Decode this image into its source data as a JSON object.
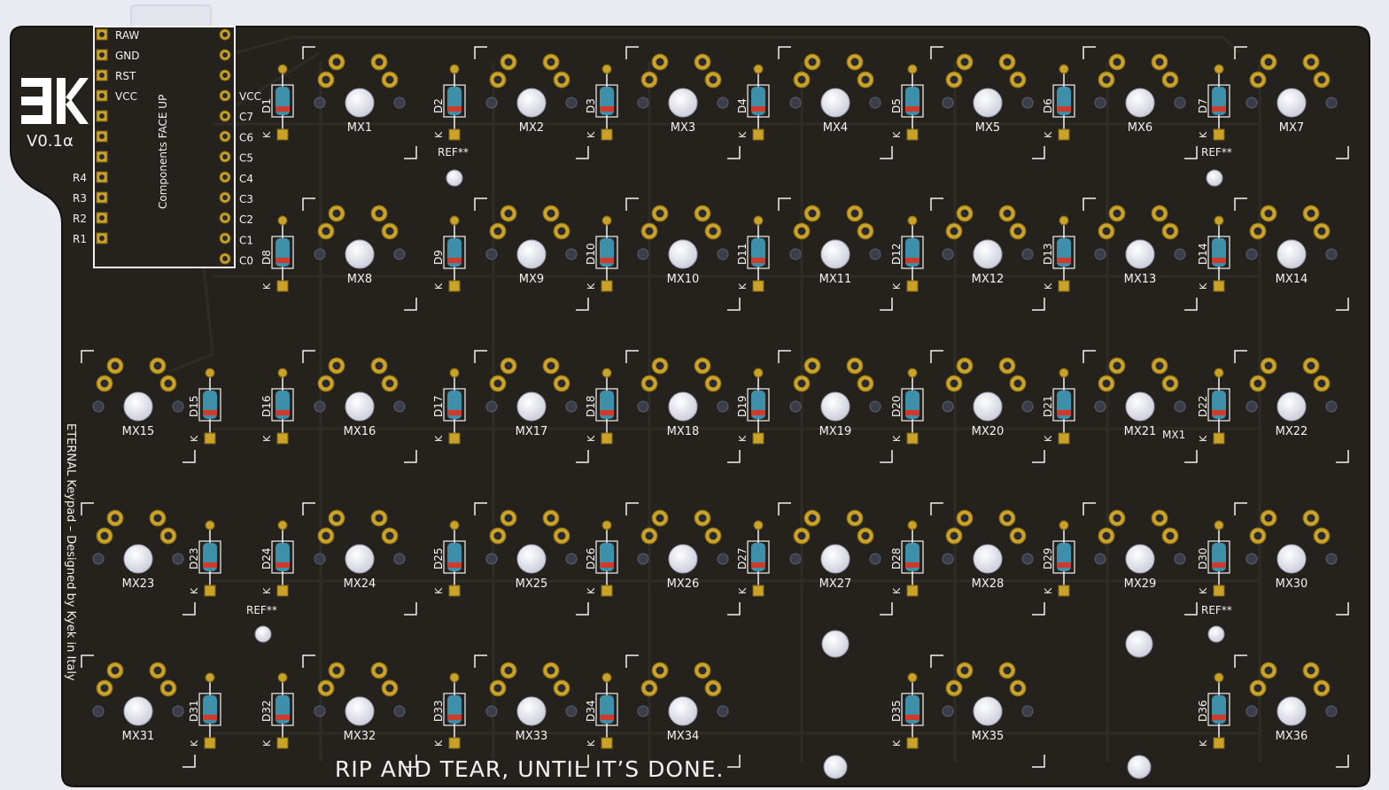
{
  "board": {
    "logo_text": "EK",
    "version": "V0.1α",
    "controller_label": "Components FACE UP",
    "side_text": "ETERNAL Keypad – Designed by Kyek in Italy",
    "slogan": "RIP AND TEAR, UNTIL IT’S DONE.",
    "pins_left": [
      "RAW",
      "GND",
      "RST",
      "VCC",
      "",
      "",
      "",
      "R4",
      "R3",
      "R2",
      "R1"
    ],
    "pins_right": [
      "VCC",
      "C7",
      "C6",
      "C5",
      "C4",
      "C3",
      "C2",
      "C1",
      "C0"
    ],
    "extra_labels": [
      "REF**",
      "REF**",
      "REF**",
      "REF**",
      "MX1"
    ],
    "diode_cathode_mark": "K",
    "colors": {
      "pcb": "#25221d",
      "pcb_edge": "#15130f",
      "silk": "#f2f2f2",
      "pad_gold": "#c9a227",
      "hole_white": "#dfe1ec",
      "diode_blue": "#3e8faa",
      "diode_band": "#d03a2a",
      "trace": "#2d2a24"
    }
  },
  "switches": [
    "MX1",
    "MX2",
    "MX3",
    "MX4",
    "MX5",
    "MX6",
    "MX7",
    "MX8",
    "MX9",
    "MX10",
    "MX11",
    "MX12",
    "MX13",
    "MX14",
    "MX15",
    "MX16",
    "MX17",
    "MX18",
    "MX19",
    "MX20",
    "MX21",
    "MX22",
    "MX23",
    "MX24",
    "MX25",
    "MX26",
    "MX27",
    "MX28",
    "MX29",
    "MX30",
    "MX31",
    "MX32",
    "MX33",
    "MX34",
    "MX35",
    "MX36"
  ],
  "diodes": [
    "D1",
    "D2",
    "D3",
    "D4",
    "D5",
    "D6",
    "D7",
    "D8",
    "D9",
    "D10",
    "D11",
    "D12",
    "D13",
    "D14",
    "D15",
    "D16",
    "D17",
    "D18",
    "D19",
    "D20",
    "D21",
    "D22",
    "D23",
    "D24",
    "D25",
    "D26",
    "D27",
    "D28",
    "D29",
    "D30",
    "D31",
    "D32",
    "D33",
    "D34",
    "D35",
    "D36"
  ]
}
